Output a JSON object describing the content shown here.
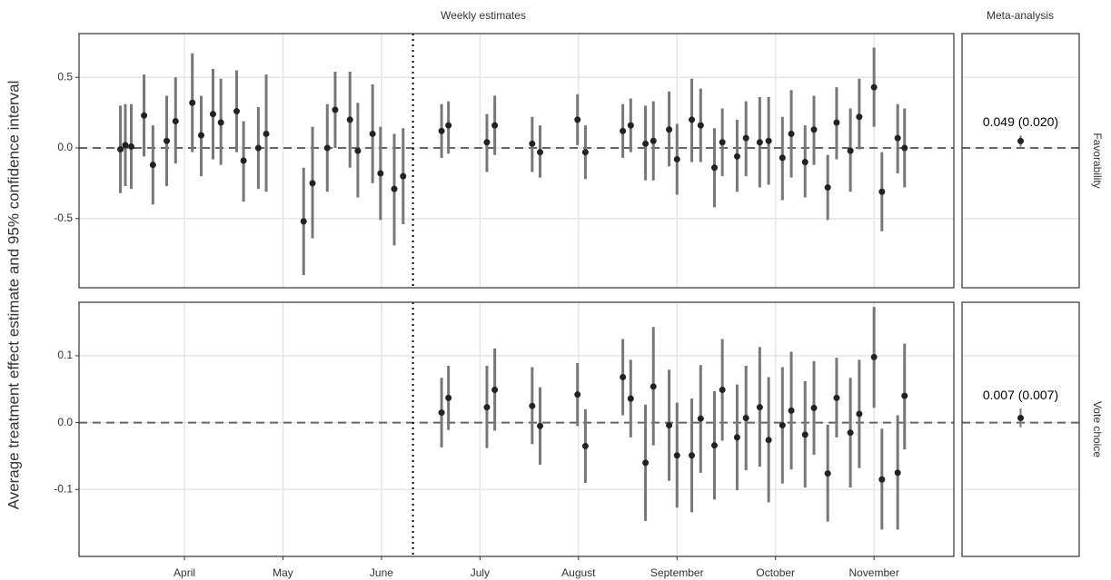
{
  "chart_data": {
    "type": "errorbar",
    "ylabel": "Average treatment effect estimate and 95% confidence interval",
    "column_titles": [
      "Weekly estimates",
      "Meta-analysis"
    ],
    "xlim": [
      2.93,
      11.81
    ],
    "xticks": [
      {
        "value": 4,
        "label": "April"
      },
      {
        "value": 5,
        "label": "May"
      },
      {
        "value": 6,
        "label": "June"
      },
      {
        "value": 7,
        "label": "July"
      },
      {
        "value": 8,
        "label": "August"
      },
      {
        "value": 9,
        "label": "September"
      },
      {
        "value": 10,
        "label": "October"
      },
      {
        "value": 11,
        "label": "November"
      }
    ],
    "vline": 6.32,
    "hline": 0,
    "grid": true,
    "point_color": "#222222",
    "bar_color": "#777777",
    "panels": [
      {
        "strip": "Favorability",
        "ylim": [
          -0.99,
          0.81
        ],
        "yticks": [
          -0.5,
          {
            "value": 0,
            "label": "0.0"
          },
          0.5
        ],
        "x": [
          3.35,
          3.4,
          3.46,
          3.59,
          3.68,
          3.82,
          3.91,
          4.08,
          4.17,
          4.29,
          4.37,
          4.53,
          4.6,
          4.75,
          4.83,
          5.21,
          5.3,
          5.45,
          5.53,
          5.68,
          5.76,
          5.91,
          5.99,
          6.13,
          6.22,
          6.61,
          6.68,
          7.07,
          7.15,
          7.53,
          7.61,
          7.99,
          8.07,
          8.45,
          8.53,
          8.68,
          8.76,
          8.92,
          9.0,
          9.15,
          9.24,
          9.38,
          9.46,
          9.61,
          9.7,
          9.84,
          9.93,
          10.07,
          10.16,
          10.3,
          10.39,
          10.53,
          10.62,
          10.76,
          10.85,
          11.0,
          11.08,
          11.24,
          11.31
        ],
        "values": [
          -0.01,
          0.02,
          0.01,
          0.23,
          -0.12,
          0.05,
          0.19,
          0.32,
          0.09,
          0.24,
          0.18,
          0.26,
          -0.09,
          0.0,
          0.1,
          -0.52,
          -0.25,
          0.0,
          0.27,
          0.2,
          -0.02,
          0.1,
          -0.18,
          -0.29,
          -0.2,
          0.12,
          0.16,
          0.04,
          0.16,
          0.03,
          -0.03,
          0.2,
          -0.03,
          0.12,
          0.16,
          0.03,
          0.05,
          0.13,
          -0.08,
          0.2,
          0.16,
          -0.14,
          0.04,
          -0.06,
          0.07,
          0.04,
          0.05,
          -0.07,
          0.1,
          -0.1,
          0.13,
          -0.28,
          0.18,
          -0.02,
          0.22,
          0.43,
          -0.31,
          0.07,
          0.0
        ],
        "lower": [
          -0.32,
          -0.27,
          -0.29,
          -0.06,
          -0.4,
          -0.27,
          -0.11,
          -0.03,
          -0.2,
          -0.08,
          -0.12,
          -0.03,
          -0.38,
          -0.29,
          -0.31,
          -0.9,
          -0.64,
          -0.31,
          0.0,
          -0.14,
          -0.35,
          -0.25,
          -0.51,
          -0.69,
          -0.54,
          -0.07,
          -0.04,
          -0.17,
          -0.05,
          -0.17,
          -0.21,
          0.02,
          -0.22,
          -0.07,
          -0.03,
          -0.23,
          -0.23,
          -0.13,
          -0.33,
          -0.1,
          -0.1,
          -0.42,
          -0.2,
          -0.31,
          -0.2,
          -0.28,
          -0.26,
          -0.37,
          -0.21,
          -0.35,
          -0.12,
          -0.51,
          -0.08,
          -0.31,
          -0.01,
          0.15,
          -0.59,
          -0.18,
          -0.28
        ],
        "upper": [
          0.3,
          0.31,
          0.31,
          0.52,
          0.16,
          0.37,
          0.5,
          0.67,
          0.37,
          0.56,
          0.49,
          0.55,
          0.19,
          0.29,
          0.52,
          -0.14,
          0.15,
          0.31,
          0.54,
          0.54,
          0.32,
          0.45,
          0.15,
          0.1,
          0.14,
          0.31,
          0.33,
          0.24,
          0.37,
          0.22,
          0.16,
          0.38,
          0.16,
          0.31,
          0.35,
          0.3,
          0.33,
          0.4,
          0.17,
          0.49,
          0.42,
          0.14,
          0.28,
          0.2,
          0.33,
          0.36,
          0.36,
          0.22,
          0.41,
          0.16,
          0.37,
          -0.05,
          0.43,
          0.28,
          0.49,
          0.71,
          -0.03,
          0.31,
          0.28
        ],
        "meta": {
          "value": 0.049,
          "lower": 0.01,
          "upper": 0.088,
          "label": "0.049 (0.020)"
        }
      },
      {
        "strip": "Vote choice",
        "ylim": [
          -0.2,
          0.18
        ],
        "yticks": [
          -0.1,
          {
            "value": 0,
            "label": "0.0"
          },
          0.1
        ],
        "x": [
          6.61,
          6.68,
          7.07,
          7.15,
          7.53,
          7.61,
          7.99,
          8.07,
          8.45,
          8.53,
          8.68,
          8.76,
          8.92,
          9.0,
          9.15,
          9.24,
          9.38,
          9.46,
          9.61,
          9.7,
          9.84,
          9.93,
          10.07,
          10.16,
          10.3,
          10.39,
          10.53,
          10.62,
          10.76,
          10.85,
          11.0,
          11.08,
          11.24,
          11.31
        ],
        "values": [
          0.015,
          0.037,
          0.023,
          0.049,
          0.025,
          -0.005,
          0.042,
          -0.035,
          0.068,
          0.036,
          -0.06,
          0.054,
          -0.004,
          -0.049,
          -0.049,
          0.006,
          -0.034,
          0.049,
          -0.022,
          0.007,
          0.023,
          -0.026,
          -0.004,
          0.018,
          -0.018,
          0.022,
          -0.076,
          0.037,
          -0.015,
          0.013,
          0.098,
          -0.085,
          -0.075,
          0.04
        ],
        "lower": [
          -0.037,
          -0.011,
          -0.038,
          -0.012,
          -0.032,
          -0.063,
          -0.005,
          -0.09,
          0.011,
          -0.022,
          -0.147,
          -0.034,
          -0.087,
          -0.127,
          -0.134,
          -0.075,
          -0.115,
          -0.027,
          -0.101,
          -0.071,
          -0.066,
          -0.119,
          -0.091,
          -0.07,
          -0.097,
          -0.048,
          -0.148,
          -0.022,
          -0.097,
          -0.068,
          0.022,
          -0.16,
          -0.16,
          -0.04
        ],
        "upper": [
          0.067,
          0.085,
          0.085,
          0.111,
          0.083,
          0.053,
          0.089,
          0.02,
          0.125,
          0.094,
          0.027,
          0.143,
          0.079,
          0.03,
          0.036,
          0.086,
          0.047,
          0.125,
          0.057,
          0.085,
          0.113,
          0.068,
          0.083,
          0.106,
          0.062,
          0.092,
          -0.003,
          0.097,
          0.067,
          0.094,
          0.173,
          -0.009,
          0.011,
          0.118
        ],
        "meta": {
          "value": 0.007,
          "lower": -0.007,
          "upper": 0.021,
          "label": "0.007 (0.007)"
        }
      }
    ]
  }
}
